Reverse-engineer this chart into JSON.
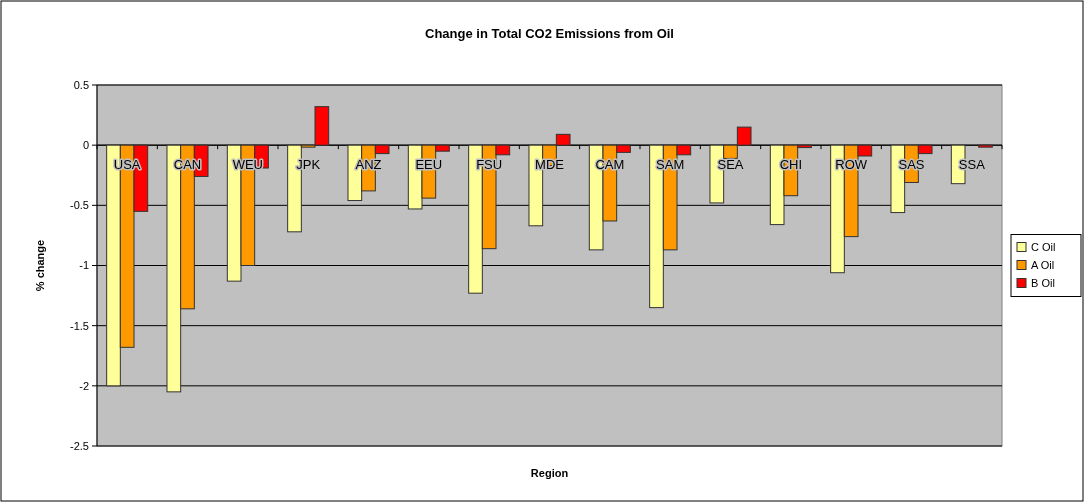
{
  "chart_data": {
    "type": "bar",
    "title": "Change  in Total CO2 Emissions from Oil",
    "xlabel": "Region",
    "ylabel": "% change",
    "categories": [
      "USA",
      "CAN",
      "WEU",
      "JPK",
      "ANZ",
      "EEU",
      "FSU",
      "MDE",
      "CAM",
      "SAM",
      "SEA",
      "CHI",
      "ROW",
      "SAS",
      "SSA"
    ],
    "series": [
      {
        "name": "C Oil",
        "color": "#ffff99",
        "values": [
          -2.0,
          -2.05,
          -1.13,
          -0.72,
          -0.46,
          -0.53,
          -1.23,
          -0.67,
          -0.87,
          -1.35,
          -0.48,
          -0.66,
          -1.06,
          -0.56,
          -0.32
        ]
      },
      {
        "name": "A Oil",
        "color": "#ff9900",
        "values": [
          -1.68,
          -1.36,
          -1.0,
          -0.01,
          -0.38,
          -0.44,
          -0.86,
          -0.17,
          -0.63,
          -0.87,
          -0.11,
          -0.42,
          -0.76,
          -0.31,
          null
        ]
      },
      {
        "name": "B Oil",
        "color": "#ff0000",
        "values": [
          -0.55,
          -0.26,
          -0.19,
          0.32,
          -0.07,
          -0.05,
          -0.08,
          0.09,
          -0.06,
          -0.08,
          0.15,
          -0.02,
          -0.09,
          -0.07,
          -0.01
        ]
      }
    ],
    "ylim": [
      -2.5,
      0.5
    ],
    "yticks": [
      -2.5,
      -2,
      -1.5,
      -1,
      -0.5,
      0,
      0.5
    ],
    "grid": "y",
    "legend": "right"
  }
}
